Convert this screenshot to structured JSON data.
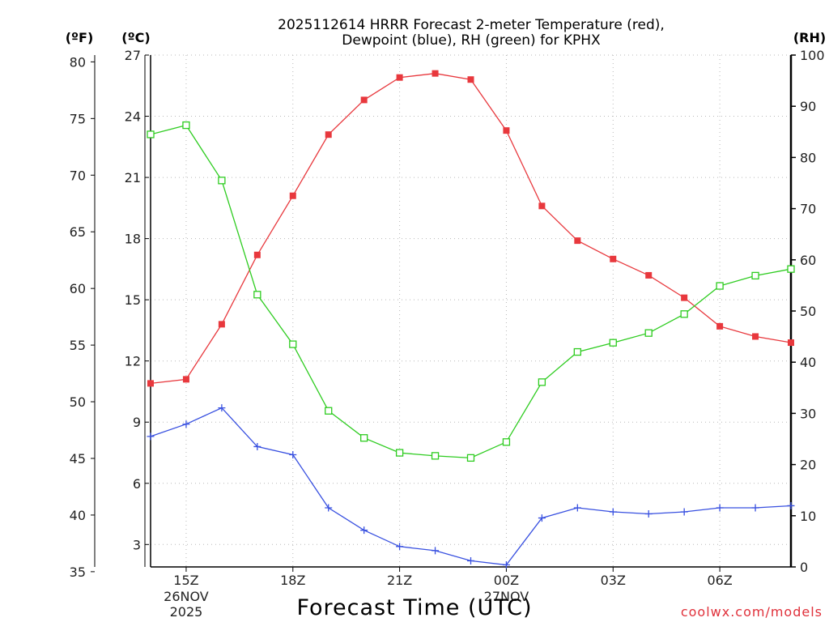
{
  "chart_data": {
    "type": "line",
    "title_line1": "2025112614 HRRR Forecast 2-meter Temperature (red),",
    "title_line2": "Dewpoint (blue), RH (green) for KPHX",
    "xlabel": "Forecast Time (UTC)",
    "credit": "coolwx.com/models",
    "units": {
      "fahrenheit": "(ºF)",
      "celsius": "(ºC)",
      "rh": "(RH)"
    },
    "x_hours": [
      14,
      15,
      16,
      17,
      18,
      19,
      20,
      21,
      22,
      23,
      24,
      25,
      26,
      27,
      28,
      29,
      30,
      31,
      32
    ],
    "xlim": [
      14,
      32
    ],
    "x_ticks": [
      {
        "hour": 15,
        "label": "15Z",
        "date": "26NOV",
        "year": "2025"
      },
      {
        "hour": 18,
        "label": "18Z"
      },
      {
        "hour": 21,
        "label": "21Z"
      },
      {
        "hour": 24,
        "label": "00Z",
        "date": "27NOV"
      },
      {
        "hour": 27,
        "label": "03Z"
      },
      {
        "hour": 30,
        "label": "06Z"
      }
    ],
    "celsius_axis": {
      "ylim": [
        1.9,
        27
      ],
      "ticks": [
        3,
        6,
        9,
        12,
        15,
        18,
        21,
        24,
        27
      ]
    },
    "fahrenheit_axis": {
      "ticks": [
        35,
        40,
        45,
        50,
        55,
        60,
        65,
        70,
        75,
        80
      ]
    },
    "rh_axis": {
      "ylim": [
        0,
        100
      ],
      "ticks": [
        0,
        10,
        20,
        30,
        40,
        50,
        60,
        70,
        80,
        90,
        100
      ]
    },
    "series": [
      {
        "name": "2-meter Temperature",
        "axis": "celsius",
        "color": "#e8383d",
        "marker": "filled-square",
        "values": [
          10.9,
          11.1,
          13.8,
          17.2,
          20.1,
          23.1,
          24.8,
          25.9,
          26.1,
          25.8,
          23.3,
          19.6,
          17.9,
          17.0,
          16.2,
          15.1,
          13.7,
          13.2,
          12.9
        ]
      },
      {
        "name": "Dewpoint",
        "axis": "celsius",
        "color": "#3850e0",
        "marker": "plus",
        "values": [
          8.3,
          8.9,
          9.7,
          7.8,
          7.4,
          4.8,
          3.7,
          2.9,
          2.7,
          2.2,
          2.0,
          4.3,
          4.8,
          4.6,
          4.5,
          4.6,
          4.8,
          4.8,
          4.9
        ]
      },
      {
        "name": "RH",
        "axis": "rh",
        "color": "#2ecc20",
        "marker": "open-square",
        "values": [
          84.5,
          86.3,
          75.5,
          53.2,
          43.5,
          30.5,
          25.2,
          22.3,
          21.7,
          21.3,
          24.4,
          36.1,
          42.0,
          43.8,
          45.7,
          49.4,
          54.9,
          56.9,
          58.2
        ]
      }
    ]
  }
}
